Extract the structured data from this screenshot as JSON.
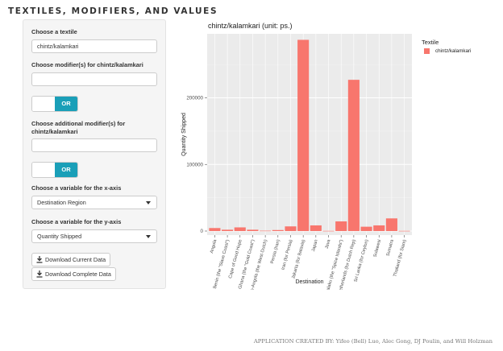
{
  "page_title": "TEXTILES, MODIFIERS, AND VALUES",
  "sidebar": {
    "textile_label": "Choose a textile",
    "textile_value": "chintz/kalamkari",
    "modifier_label": "Choose modifier(s) for chintz/kalamkari",
    "modifier_value": "",
    "toggle1_label": "OR",
    "additional_label_line1": "Choose additional modifier(s) for",
    "additional_label_line2": "chintz/kalamkari",
    "additional_value": "",
    "toggle2_label": "OR",
    "xaxis_label": "Choose a variable for the x-axis",
    "xaxis_value": "Destination Region",
    "yaxis_label": "Choose a variable for the y-axis",
    "yaxis_value": "Quantity Shipped",
    "download_current": "Download Current Data",
    "download_complete": "Download Complete Data",
    "icons": {
      "download": "download-icon",
      "dropdown": "chevron-down-icon"
    }
  },
  "chart_data": {
    "type": "bar",
    "title": "chintz/kalamkari (unit: ps.)",
    "xlabel": "Destination",
    "ylabel": "Quantity Shipped",
    "ylim": [
      0,
      290000
    ],
    "y_ticks": [
      0,
      100000,
      200000
    ],
    "y_tick_labels": [
      "0",
      "100000",
      "200000"
    ],
    "legend_title": "Textile",
    "grid": true,
    "legend_position": "right",
    "categories": [
      "Angola",
      "Benin (the \"Slave Coast\")",
      "Cape of Good Hope",
      "Ghana (the \"Gold Coast\")",
      "Guinea (the Dutch) Loango-Angola (the West-Dutch)",
      "Persia (Iran)",
      "Iran (for Persia)",
      "Jakarta (for Batavia)",
      "Japan",
      "Java",
      "Malaku (the \"Spice Islands\")",
      "Netherlands (for Dutch Rep)",
      "Sri Lanka (for Ceylon)",
      "Sulawesi",
      "Sumatra",
      "Thailand (for Siam)"
    ],
    "series": [
      {
        "name": "chintz/kalamkari",
        "color": "#f8766d",
        "values": [
          4500,
          2000,
          5500,
          2000,
          500,
          1500,
          7000,
          287000,
          8500,
          300,
          14500,
          227000,
          6500,
          8500,
          19000,
          300
        ]
      }
    ]
  },
  "footer": "APPLICATION CREATED BY: Yifeo (Bell) Luo, Alec Gong, DJ Poulin, and Will Holzman"
}
